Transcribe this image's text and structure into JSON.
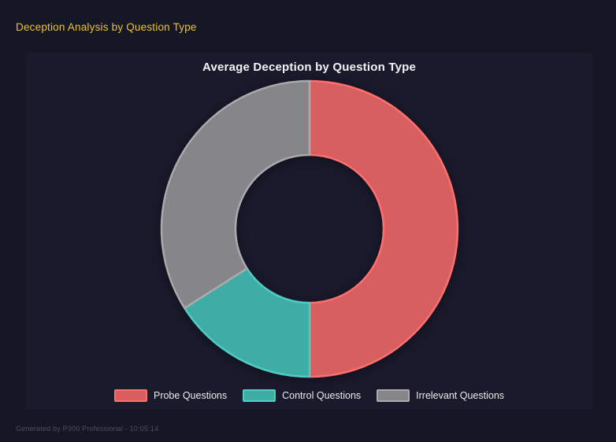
{
  "header": {
    "title": "Deception Analysis by Question Type",
    "color": "#eec32d"
  },
  "footer": {
    "text": "Generated by P300 Professional - 10:05:14"
  },
  "colors": {
    "page_bg": "#161724",
    "panel_bg": "#1a1a2c",
    "chart_title_text": "#f2f2f5",
    "legend_text": "#eaeaf0",
    "footer_text": "#4d4f5e"
  },
  "chart_data": {
    "type": "doughnut",
    "title": "Average Deception by Question Type",
    "labels": [
      "Probe Questions",
      "Control Questions",
      "Irrelevant Questions"
    ],
    "values_percent": [
      50,
      16,
      34
    ],
    "segment_fill_colors": [
      "#d85f5f",
      "#3fada5",
      "#85858a"
    ],
    "segment_border_colors": [
      "#ff6f6f",
      "#4ecdc4",
      "#aaaaaf"
    ],
    "legend_position": "bottom",
    "cutout_percent": 50,
    "start_angle_deg_from_top": 0,
    "direction": "clockwise"
  }
}
